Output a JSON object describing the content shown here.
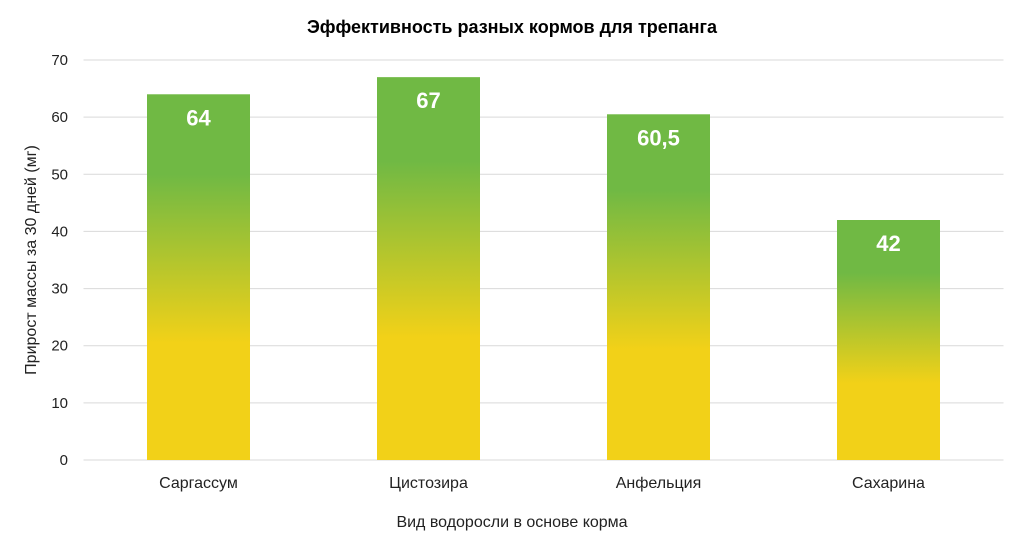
{
  "chart_data": {
    "type": "bar",
    "title": "Эффективность  разных кормов для трепанга",
    "xlabel": "Вид водоросли в основе корма",
    "ylabel": "Прирост массы за 30 дней  (мг)",
    "categories": [
      "Саргассум",
      "Цистозира",
      "Анфельция",
      "Сахарина"
    ],
    "values": [
      64,
      67,
      60.5,
      42
    ],
    "data_labels": [
      "64",
      "67",
      "60,5",
      "42"
    ],
    "ylim": [
      0,
      70
    ],
    "yticks": [
      0,
      10,
      20,
      30,
      40,
      50,
      60,
      70
    ],
    "grid": true,
    "legend": "none",
    "colors": {
      "bar_top": "#70b944",
      "bar_bottom": "#f2d118",
      "grid": "#d9d9d9"
    }
  }
}
